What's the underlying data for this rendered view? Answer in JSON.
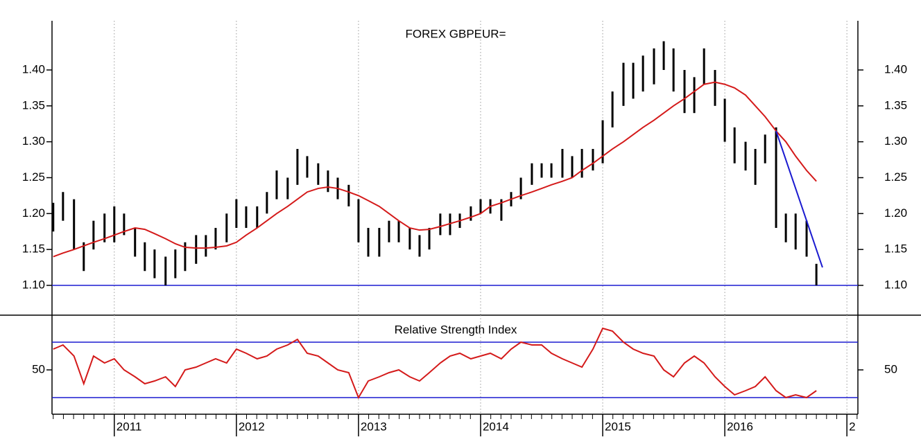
{
  "chart_data": [
    {
      "type": "stock",
      "title": "FOREX GBPEUR=",
      "x": [
        2010.5,
        2010.58,
        2010.67,
        2010.75,
        2010.83,
        2010.92,
        2011.0,
        2011.08,
        2011.17,
        2011.25,
        2011.33,
        2011.42,
        2011.5,
        2011.58,
        2011.67,
        2011.75,
        2011.83,
        2011.92,
        2012.0,
        2012.08,
        2012.17,
        2012.25,
        2012.33,
        2012.42,
        2012.5,
        2012.58,
        2012.67,
        2012.75,
        2012.83,
        2012.92,
        2013.0,
        2013.08,
        2013.17,
        2013.25,
        2013.33,
        2013.42,
        2013.5,
        2013.58,
        2013.67,
        2013.75,
        2013.83,
        2013.92,
        2014.0,
        2014.08,
        2014.17,
        2014.25,
        2014.33,
        2014.42,
        2014.5,
        2014.58,
        2014.67,
        2014.75,
        2014.83,
        2014.92,
        2015.0,
        2015.08,
        2015.17,
        2015.25,
        2015.33,
        2015.42,
        2015.5,
        2015.58,
        2015.67,
        2015.75,
        2015.83,
        2015.92,
        2016.0,
        2016.08,
        2016.17,
        2016.25,
        2016.33,
        2016.42,
        2016.5,
        2016.58,
        2016.67,
        2016.75
      ],
      "high": [
        1.215,
        1.23,
        1.22,
        1.16,
        1.19,
        1.2,
        1.21,
        1.2,
        1.18,
        1.16,
        1.15,
        1.14,
        1.15,
        1.16,
        1.17,
        1.17,
        1.18,
        1.2,
        1.22,
        1.21,
        1.21,
        1.23,
        1.26,
        1.25,
        1.29,
        1.28,
        1.27,
        1.26,
        1.25,
        1.24,
        1.22,
        1.18,
        1.18,
        1.19,
        1.19,
        1.18,
        1.17,
        1.18,
        1.2,
        1.2,
        1.2,
        1.21,
        1.22,
        1.22,
        1.22,
        1.23,
        1.25,
        1.27,
        1.27,
        1.27,
        1.29,
        1.28,
        1.29,
        1.29,
        1.33,
        1.37,
        1.41,
        1.41,
        1.42,
        1.43,
        1.44,
        1.43,
        1.4,
        1.39,
        1.43,
        1.4,
        1.36,
        1.32,
        1.3,
        1.29,
        1.31,
        1.32,
        1.2,
        1.2,
        1.19,
        1.13
      ],
      "low": [
        1.175,
        1.19,
        1.15,
        1.12,
        1.15,
        1.16,
        1.16,
        1.17,
        1.14,
        1.12,
        1.11,
        1.1,
        1.11,
        1.12,
        1.13,
        1.14,
        1.15,
        1.16,
        1.18,
        1.18,
        1.18,
        1.2,
        1.22,
        1.22,
        1.24,
        1.25,
        1.24,
        1.23,
        1.22,
        1.21,
        1.16,
        1.14,
        1.14,
        1.16,
        1.16,
        1.15,
        1.14,
        1.15,
        1.17,
        1.17,
        1.18,
        1.19,
        1.2,
        1.2,
        1.19,
        1.21,
        1.22,
        1.24,
        1.25,
        1.25,
        1.25,
        1.25,
        1.25,
        1.26,
        1.27,
        1.32,
        1.35,
        1.36,
        1.37,
        1.38,
        1.4,
        1.37,
        1.34,
        1.34,
        1.38,
        1.35,
        1.3,
        1.27,
        1.26,
        1.24,
        1.27,
        1.18,
        1.16,
        1.15,
        1.14,
        1.1
      ],
      "bar_color": "#000000",
      "ma": {
        "color": "#d41a1a",
        "values": [
          1.14,
          1.145,
          1.15,
          1.155,
          1.16,
          1.165,
          1.17,
          1.175,
          1.18,
          1.178,
          1.172,
          1.165,
          1.158,
          1.153,
          1.152,
          1.152,
          1.153,
          1.155,
          1.16,
          1.17,
          1.18,
          1.19,
          1.2,
          1.21,
          1.22,
          1.23,
          1.235,
          1.237,
          1.235,
          1.23,
          1.225,
          1.218,
          1.21,
          1.2,
          1.19,
          1.18,
          1.177,
          1.178,
          1.182,
          1.186,
          1.19,
          1.195,
          1.2,
          1.21,
          1.215,
          1.22,
          1.225,
          1.23,
          1.235,
          1.24,
          1.245,
          1.25,
          1.26,
          1.27,
          1.28,
          1.29,
          1.3,
          1.31,
          1.32,
          1.33,
          1.34,
          1.35,
          1.36,
          1.37,
          1.38,
          1.383,
          1.38,
          1.375,
          1.365,
          1.35,
          1.335,
          1.315,
          1.3,
          1.28,
          1.26,
          1.245
        ]
      },
      "hlines": [
        {
          "value": 1.1,
          "color": "#1a1ad0"
        }
      ],
      "trendline": {
        "x": [
          2016.42,
          2016.8
        ],
        "y": [
          1.315,
          1.125
        ],
        "color": "#1a1ad0"
      },
      "ylim": [
        1.0585,
        1.4685
      ],
      "yticks": [
        {
          "value": 1.1,
          "label": "1.10"
        },
        1.15,
        {
          "value": 1.2,
          "label": "1.20"
        },
        1.25,
        {
          "value": 1.3,
          "label": "1.30"
        },
        1.35,
        {
          "value": 1.4,
          "label": "1.40"
        }
      ]
    },
    {
      "type": "line",
      "title": "Relative Strength Index",
      "color": "#d41a1a",
      "values": [
        65,
        68,
        60,
        40,
        60,
        55,
        58,
        50,
        45,
        40,
        42,
        45,
        38,
        50,
        52,
        55,
        58,
        55,
        65,
        62,
        58,
        60,
        65,
        68,
        72,
        62,
        60,
        55,
        50,
        48,
        30,
        42,
        45,
        48,
        50,
        45,
        42,
        48,
        55,
        60,
        62,
        58,
        60,
        62,
        58,
        65,
        70,
        68,
        68,
        62,
        58,
        55,
        52,
        65,
        80,
        78,
        70,
        65,
        62,
        60,
        50,
        45,
        55,
        60,
        55,
        45,
        38,
        32,
        35,
        38,
        45,
        35,
        30,
        32,
        30,
        35
      ],
      "hlines": [
        {
          "value": 70,
          "color": "#1a1ad0"
        },
        {
          "value": 30,
          "color": "#1a1ad0"
        }
      ],
      "ylim": [
        18,
        89.5
      ],
      "yticks": [
        50
      ],
      "xlim": [
        2010.49,
        2017.09
      ],
      "xticks": [
        2011,
        2012,
        2013,
        2014,
        2015,
        2016,
        {
          "value": 2017,
          "label": "2"
        }
      ],
      "grid": true
    }
  ]
}
